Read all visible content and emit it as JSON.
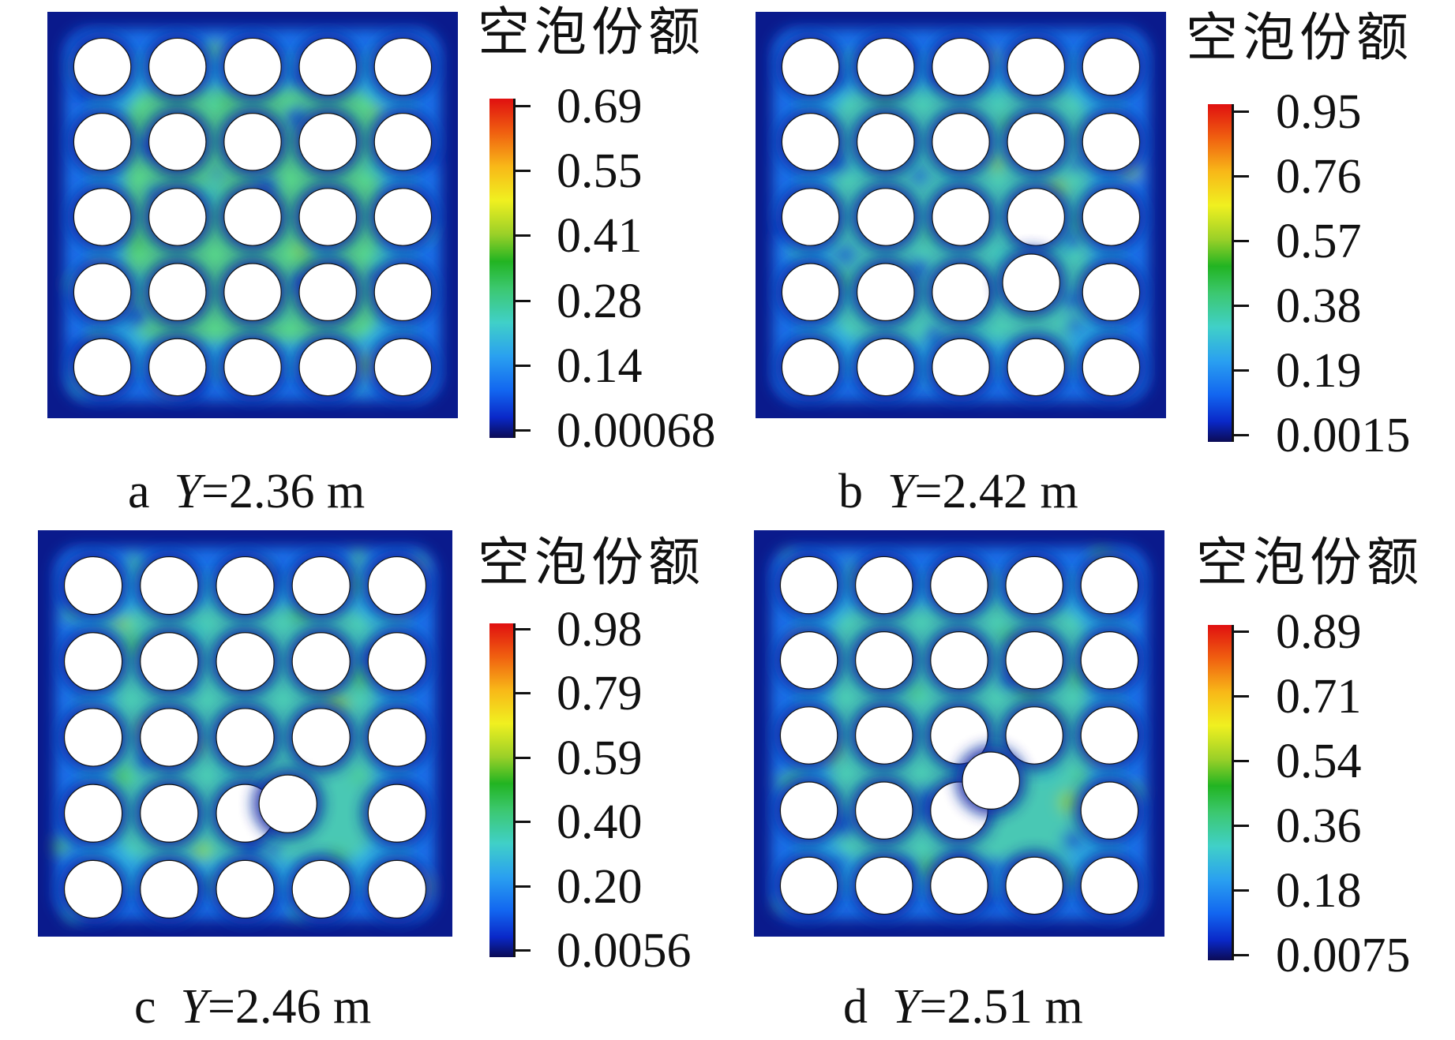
{
  "panels": [
    {
      "letter": "a",
      "variable": "Y",
      "value": "=2.36 m",
      "legend_title": "空泡份额",
      "ticks": [
        "0.69",
        "0.55",
        "0.41",
        "0.28",
        "0.14",
        "0.00068"
      ],
      "displaced_rod": null
    },
    {
      "letter": "b",
      "variable": "Y",
      "value": "=2.42 m",
      "legend_title": "空泡份额",
      "ticks": [
        "0.95",
        "0.76",
        "0.57",
        "0.38",
        "0.19",
        "0.0015"
      ],
      "displaced_rod": "row 4, column 4, slightly up-left"
    },
    {
      "letter": "c",
      "variable": "Y",
      "value": "=2.46 m",
      "legend_title": "空泡份额",
      "ticks": [
        "0.98",
        "0.79",
        "0.59",
        "0.40",
        "0.20",
        "0.0056"
      ],
      "displaced_rod": "row 4, column 4, shifted left"
    },
    {
      "letter": "d",
      "variable": "Y",
      "value": "=2.51 m",
      "legend_title": "空泡份额",
      "ticks": [
        "0.89",
        "0.71",
        "0.54",
        "0.36",
        "0.18",
        "0.0075"
      ],
      "displaced_rod": "row 4, column 4, shifted left"
    }
  ],
  "rod_grid": "5 x 5",
  "colormap": [
    "#0b0b55",
    "#0a28c8",
    "#1266f0",
    "#2aa0f0",
    "#40d0c8",
    "#3cc870",
    "#22b422",
    "#9ad028",
    "#f0f020",
    "#f8b818",
    "#f06010",
    "#e01010"
  ]
}
